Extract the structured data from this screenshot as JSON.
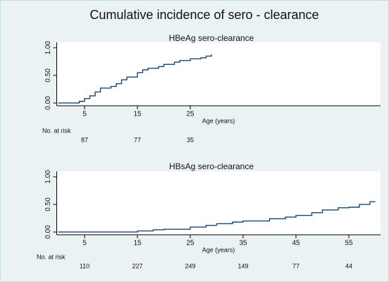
{
  "title": "Cumulative incidence of sero - clearance",
  "chart_data": [
    {
      "type": "line",
      "step": true,
      "subtitle": "HBeAg sero-clearance",
      "xlabel": "Age (years)",
      "color": "#1a476f",
      "x": [
        0,
        3.5,
        4,
        5,
        6,
        7,
        8,
        10,
        11,
        12,
        13,
        15,
        16,
        17,
        19,
        20,
        22,
        23,
        25,
        27,
        28,
        29
      ],
      "values": [
        0,
        0,
        0.03,
        0.08,
        0.13,
        0.2,
        0.27,
        0.3,
        0.35,
        0.42,
        0.47,
        0.55,
        0.6,
        0.63,
        0.66,
        0.7,
        0.74,
        0.77,
        0.8,
        0.82,
        0.85,
        0.88
      ],
      "xlim": [
        0,
        61
      ],
      "ylim": [
        -0.05,
        1.1
      ],
      "xticks": [
        5,
        15,
        25
      ],
      "yticks": [
        {
          "value": 0,
          "label": "0.00"
        },
        {
          "value": 0.5,
          "label": "0.50"
        },
        {
          "value": 1,
          "label": "1.00"
        }
      ],
      "risk_label": "No. at risk",
      "risk_x": [
        5,
        15,
        25
      ],
      "risk_values": [
        87,
        77,
        35
      ]
    },
    {
      "type": "line",
      "step": true,
      "subtitle": "HBsAg sero-clearance",
      "xlabel": "Age (years)",
      "color": "#1a476f",
      "x": [
        0,
        10,
        15,
        18,
        20,
        25,
        28,
        30,
        33,
        35,
        40,
        43,
        45,
        48,
        50,
        53,
        55,
        57,
        59,
        60
      ],
      "values": [
        0,
        0,
        0.02,
        0.04,
        0.05,
        0.09,
        0.12,
        0.15,
        0.18,
        0.2,
        0.24,
        0.27,
        0.3,
        0.35,
        0.4,
        0.44,
        0.45,
        0.5,
        0.55,
        0.55
      ],
      "xlim": [
        0,
        61
      ],
      "ylim": [
        -0.05,
        1.1
      ],
      "xticks": [
        5,
        15,
        25,
        35,
        45,
        55
      ],
      "yticks": [
        {
          "value": 0,
          "label": "0.00"
        },
        {
          "value": 0.5,
          "label": "0.50"
        },
        {
          "value": 1,
          "label": "1.00"
        }
      ],
      "risk_label": "No. at risk",
      "risk_x": [
        5,
        15,
        25,
        35,
        45,
        55
      ],
      "risk_values": [
        110,
        227,
        249,
        149,
        77,
        44
      ]
    }
  ]
}
